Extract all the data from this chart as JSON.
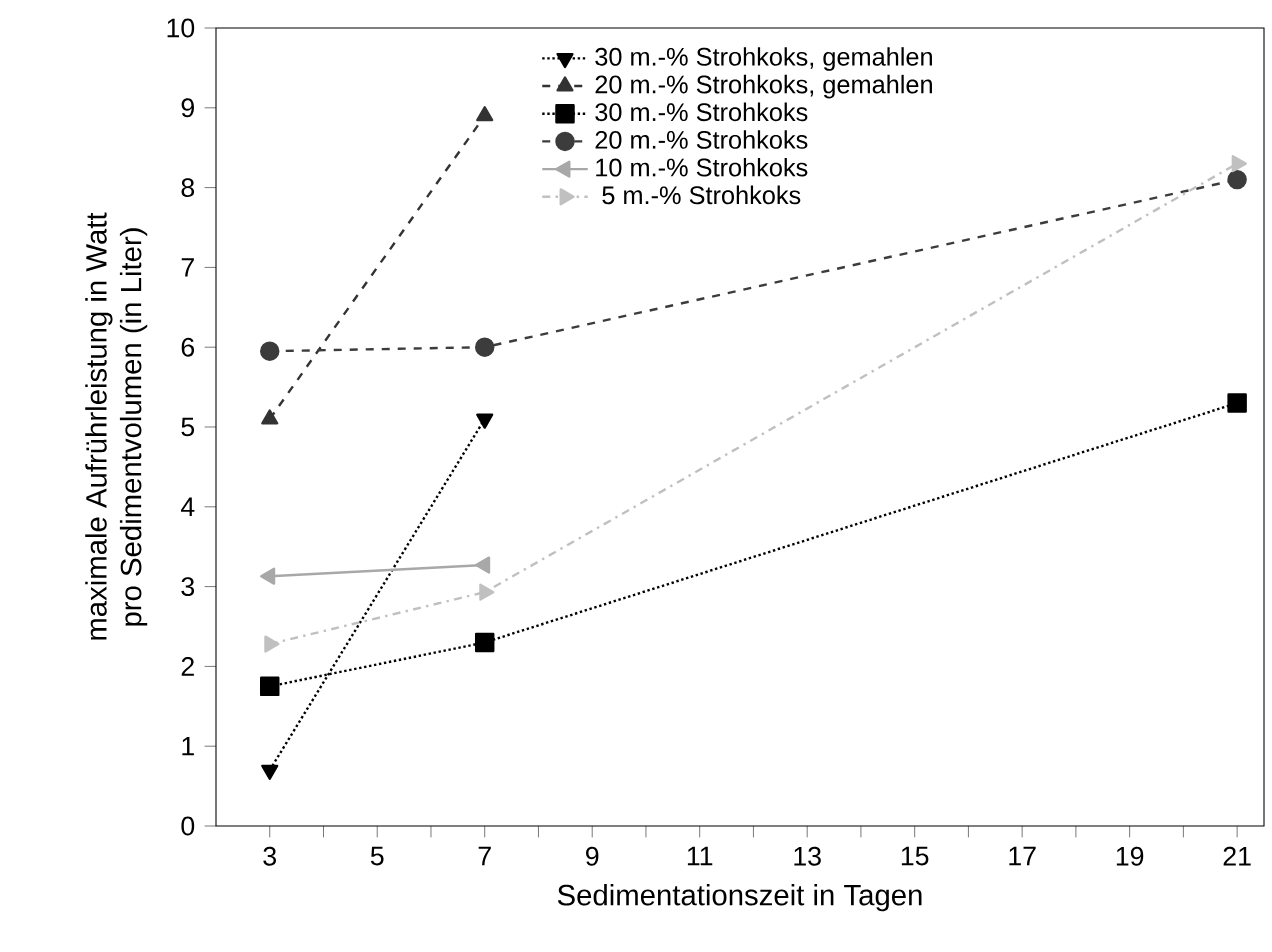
{
  "chart_data": {
    "type": "line",
    "xlabel": "Sedimentationszeit in Tagen",
    "ylabel": "maximale Aufrührleistung in Watt\npro Sedimentvolumen (in Liter)",
    "xlim": [
      2,
      21.5
    ],
    "ylim": [
      0,
      10
    ],
    "xticks": [
      3,
      {
        "value": 4,
        "label": null
      },
      5,
      {
        "value": 6,
        "label": null
      },
      7,
      {
        "value": 8,
        "label": null
      },
      9,
      {
        "value": 10,
        "label": null
      },
      11,
      {
        "value": 12,
        "label": null
      },
      13,
      {
        "value": 14,
        "label": null
      },
      15,
      {
        "value": 16,
        "label": null
      },
      17,
      {
        "value": 18,
        "label": null
      },
      19,
      {
        "value": 20,
        "label": null
      },
      21
    ],
    "yticks": [
      0,
      1,
      2,
      3,
      4,
      5,
      6,
      7,
      8,
      9,
      10
    ],
    "legend": "top",
    "grid": false,
    "series": [
      {
        "name": "30 m.-% Strohkoks, gemahlen",
        "color": "#000000",
        "marker": "triangle down",
        "line_style": "dotted",
        "x": [
          3,
          7
        ],
        "values": [
          0.7,
          5.1
        ]
      },
      {
        "name": "20 m.-% Strohkoks, gemahlen",
        "color": "#333333",
        "marker": "triangle",
        "line_style": "dashed",
        "x": [
          3,
          7
        ],
        "values": [
          5.1,
          8.9
        ]
      },
      {
        "name": "30 m.-% Strohkoks",
        "color": "#000000",
        "marker": "square",
        "line_style": "dotted",
        "x": [
          3,
          7,
          21
        ],
        "values": [
          1.75,
          2.3,
          5.3
        ]
      },
      {
        "name": "20 m.-% Strohkoks",
        "color": "#3c3c3c",
        "marker": "circle",
        "line_style": "dashed",
        "x": [
          3,
          7,
          21
        ],
        "values": [
          5.95,
          6.0,
          8.1
        ]
      },
      {
        "name": "10 m.-% Strohkoks",
        "color": "#a8a8a8",
        "marker": "triangle left",
        "line_style": "solid",
        "x": [
          3,
          7
        ],
        "values": [
          3.13,
          3.27
        ]
      },
      {
        "name": " 5 m.-% Strohkoks",
        "color": "#c0c0c0",
        "marker": "triangle right",
        "line_style": "dashdot",
        "x": [
          3,
          7,
          21
        ],
        "values": [
          2.28,
          2.93,
          8.3
        ]
      }
    ]
  }
}
